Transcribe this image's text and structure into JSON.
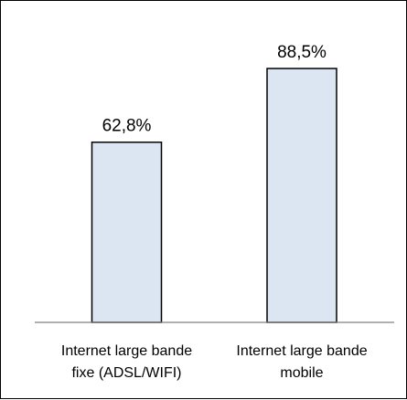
{
  "chart_data": {
    "type": "bar",
    "categories": [
      [
        "Internet large bande",
        "fixe (ADSL/WIFI)"
      ],
      [
        "Internet large bande",
        "mobile"
      ]
    ],
    "values": [
      62.8,
      88.5
    ],
    "data_labels": [
      "62,8%",
      "88,5%"
    ],
    "title": "",
    "xlabel": "",
    "ylabel": "",
    "ylim": [
      0,
      100
    ],
    "grid": false,
    "legend": "none",
    "colors": {
      "bar_fill": "#dce6f2",
      "bar_stroke": "#000000",
      "axis": "#808080"
    }
  }
}
